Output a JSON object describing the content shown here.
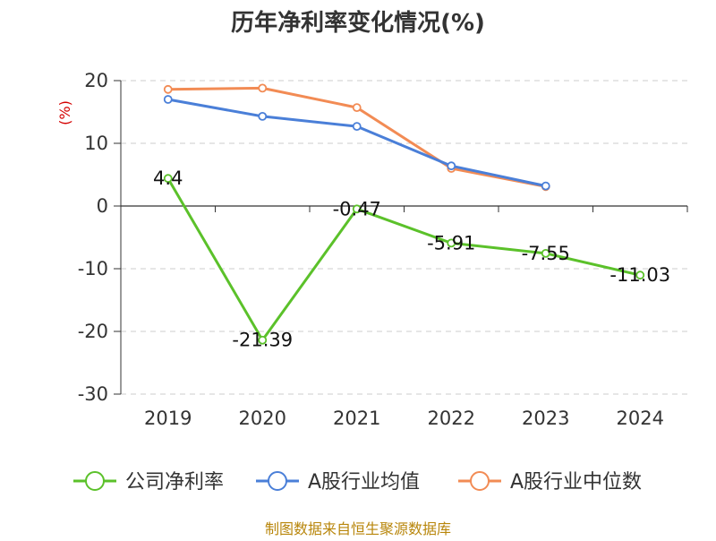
{
  "chart_data": {
    "type": "line",
    "title": "历年净利率变化情况(%)",
    "ylabel": "(%)",
    "categories": [
      "2019",
      "2020",
      "2021",
      "2022",
      "2023",
      "2024"
    ],
    "ylim": [
      -30,
      20
    ],
    "yticks": [
      "20",
      "10",
      "0",
      "-10",
      "-20",
      "-30"
    ],
    "ytick_values": [
      20,
      10,
      0,
      -10,
      -20,
      -30
    ],
    "grid": true,
    "legend_position": "bottom",
    "series": [
      {
        "name": "公司净利率",
        "color": "#5bc12a",
        "values": [
          4.4,
          -21.39,
          -0.47,
          -5.91,
          -7.55,
          -11.03
        ],
        "labels": [
          "4.4",
          "-21.39",
          "-0.47",
          "-5.91",
          "-7.55",
          "-11.03"
        ]
      },
      {
        "name": "A股行业均值",
        "color": "#4a7fd8",
        "values": [
          17.0,
          14.3,
          12.7,
          6.4,
          3.2,
          null
        ]
      },
      {
        "name": "A股行业中位数",
        "color": "#f28b54",
        "values": [
          18.6,
          18.8,
          15.7,
          6.0,
          3.1,
          null
        ]
      }
    ],
    "source": "制图数据来自恒生聚源数据库"
  }
}
